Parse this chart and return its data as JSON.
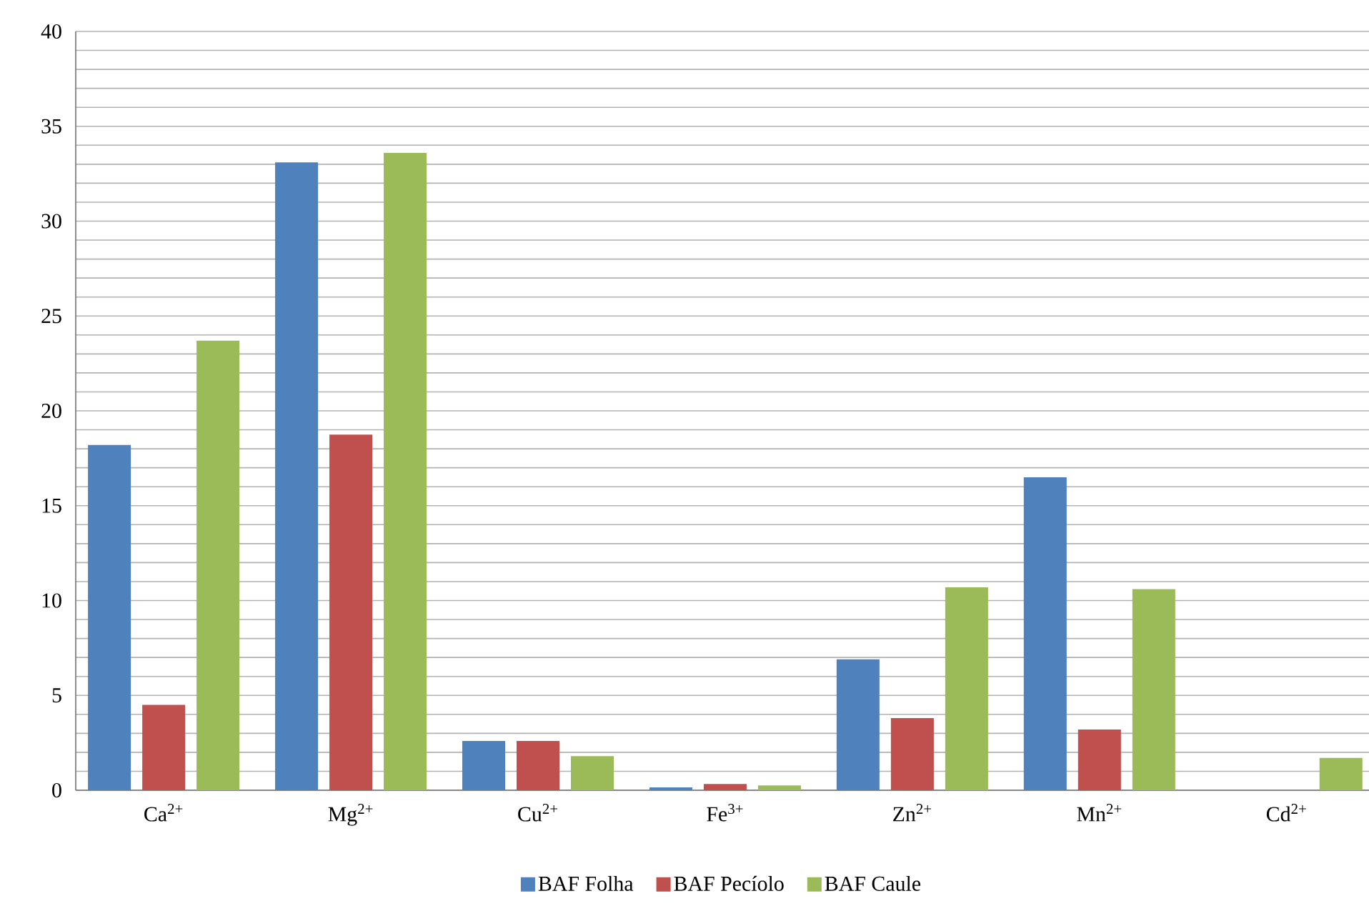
{
  "chart_data": {
    "type": "bar",
    "categories": [
      "Ca$^{2+}$",
      "Mg$^{2+}$",
      "Cu$^{2+}$",
      "Fe$^{3+}$",
      "Zn$^{2+}$",
      "Mn$^{2+}$",
      "Cd$^{2+}$"
    ],
    "series": [
      {
        "name": "BAF Folha",
        "color": "#4f81bd",
        "values": [
          18.2,
          33.1,
          2.6,
          0.15,
          6.9,
          16.5,
          null
        ]
      },
      {
        "name": "BAF Pecíolo",
        "color": "#c0504d",
        "values": [
          4.5,
          18.75,
          2.6,
          0.33,
          3.8,
          3.2,
          null
        ]
      },
      {
        "name": "BAF Caule",
        "color": "#9bbb59",
        "values": [
          23.7,
          33.6,
          1.8,
          0.25,
          10.7,
          10.6,
          1.7
        ]
      }
    ],
    "ylim": [
      0,
      40
    ],
    "yticks": [
      0,
      {
        "value": 1,
        "label": null
      },
      {
        "value": 2,
        "label": null
      },
      {
        "value": 3,
        "label": null
      },
      {
        "value": 4,
        "label": null
      },
      5,
      {
        "value": 6,
        "label": null
      },
      {
        "value": 7,
        "label": null
      },
      {
        "value": 8,
        "label": null
      },
      {
        "value": 9,
        "label": null
      },
      10,
      {
        "value": 11,
        "label": null
      },
      {
        "value": 12,
        "label": null
      },
      {
        "value": 13,
        "label": null
      },
      {
        "value": 14,
        "label": null
      },
      15,
      {
        "value": 16,
        "label": null
      },
      {
        "value": 17,
        "label": null
      },
      {
        "value": 18,
        "label": null
      },
      {
        "value": 19,
        "label": null
      },
      20,
      {
        "value": 21,
        "label": null
      },
      {
        "value": 22,
        "label": null
      },
      {
        "value": 23,
        "label": null
      },
      {
        "value": 24,
        "label": null
      },
      25,
      {
        "value": 26,
        "label": null
      },
      {
        "value": 27,
        "label": null
      },
      {
        "value": 28,
        "label": null
      },
      {
        "value": 29,
        "label": null
      },
      30,
      {
        "value": 31,
        "label": null
      },
      {
        "value": 32,
        "label": null
      },
      {
        "value": 33,
        "label": null
      },
      {
        "value": 34,
        "label": null
      },
      35,
      {
        "value": 36,
        "label": null
      },
      {
        "value": 37,
        "label": null
      },
      {
        "value": 38,
        "label": null
      },
      {
        "value": 39,
        "label": null
      },
      40
    ],
    "grid": "y",
    "legend": "bottom"
  }
}
